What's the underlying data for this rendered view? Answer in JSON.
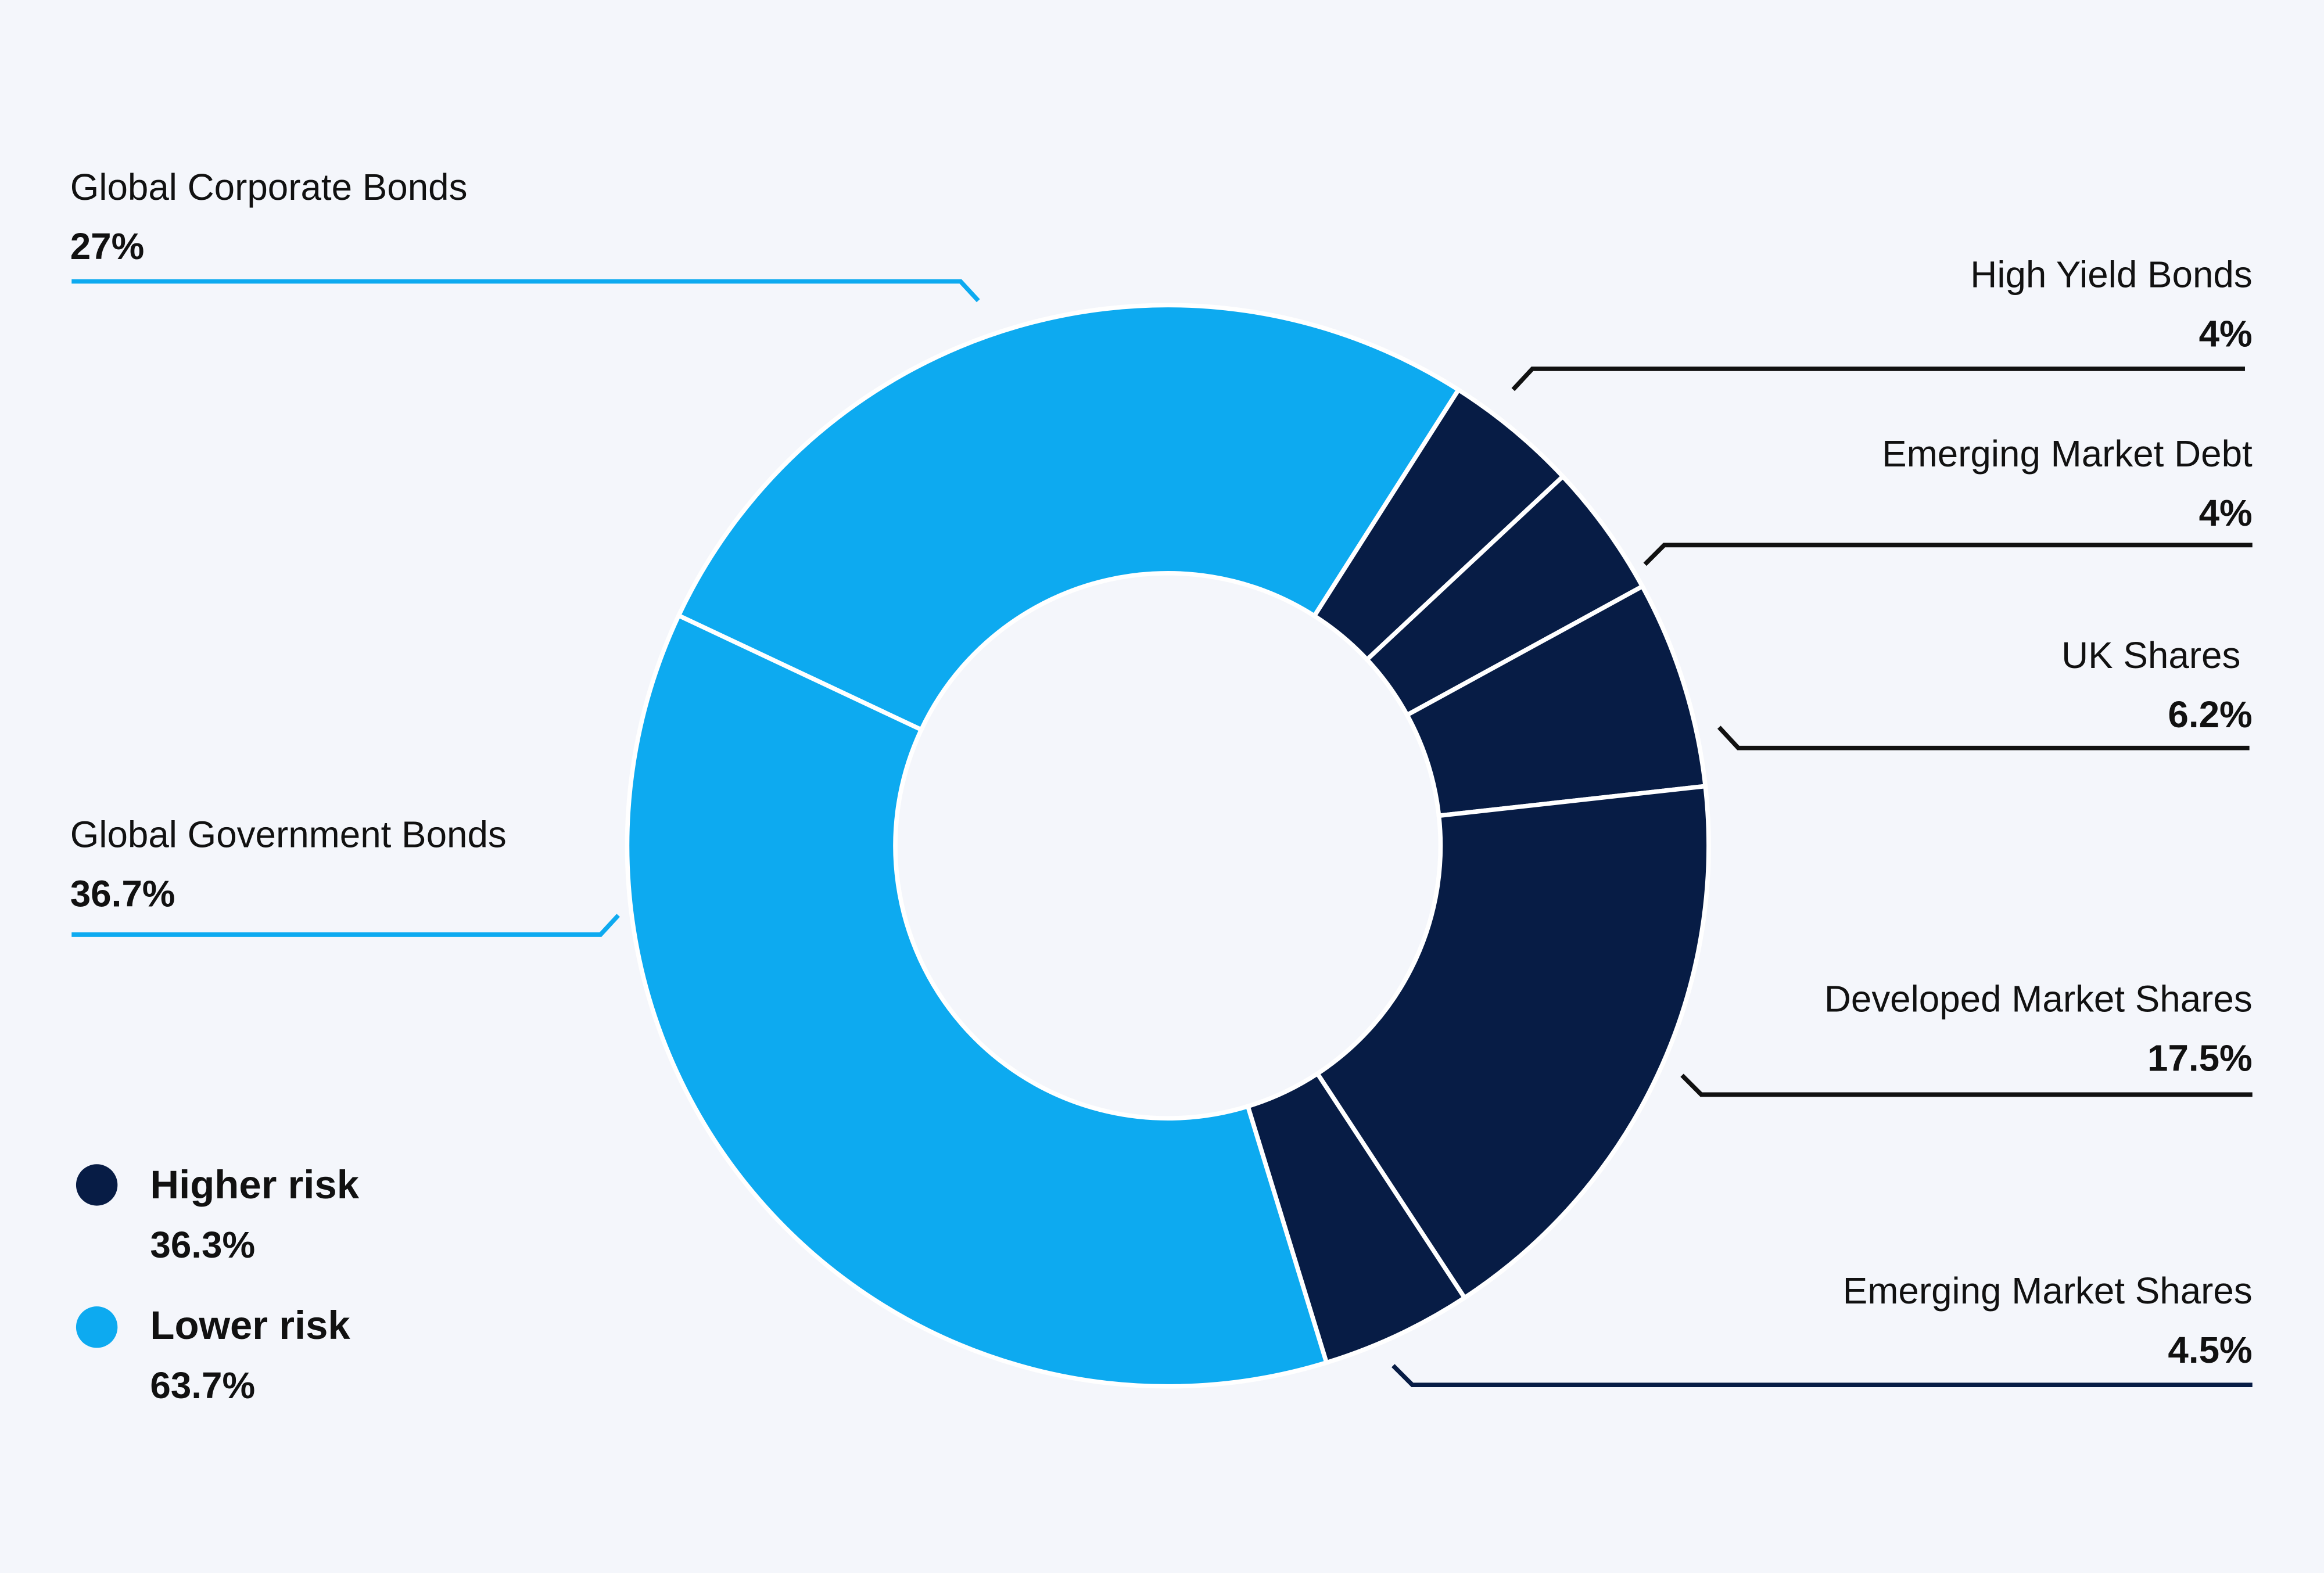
{
  "colors": {
    "higher_risk": "#071C45",
    "lower_risk": "#0DAAF0",
    "background": "#F4F6FB"
  },
  "chart_data": {
    "type": "pie",
    "donut": true,
    "unit": "%",
    "slices": [
      {
        "label": "Global Corporate Bonds",
        "value": 27,
        "display": "27%",
        "group": "lower_risk"
      },
      {
        "label": "High Yield Bonds",
        "value": 4,
        "display": "4%",
        "group": "higher_risk"
      },
      {
        "label": "Emerging Market Debt",
        "value": 4,
        "display": "4%",
        "group": "higher_risk"
      },
      {
        "label": "UK Shares",
        "value": 6.2,
        "display": "6.2%",
        "group": "higher_risk"
      },
      {
        "label": "Developed Market Shares",
        "value": 17.5,
        "display": "17.5%",
        "group": "higher_risk"
      },
      {
        "label": "Emerging Market Shares",
        "value": 4.5,
        "display": "4.5%",
        "group": "higher_risk"
      },
      {
        "label": "Global Government Bonds",
        "value": 36.7,
        "display": "36.7%",
        "group": "lower_risk"
      }
    ],
    "legend": {
      "placement": "bottom-left",
      "items": [
        {
          "label": "Higher risk",
          "value": "36.3%",
          "group": "higher_risk"
        },
        {
          "label": "Lower risk",
          "value": "63.7%",
          "group": "lower_risk"
        }
      ]
    }
  }
}
